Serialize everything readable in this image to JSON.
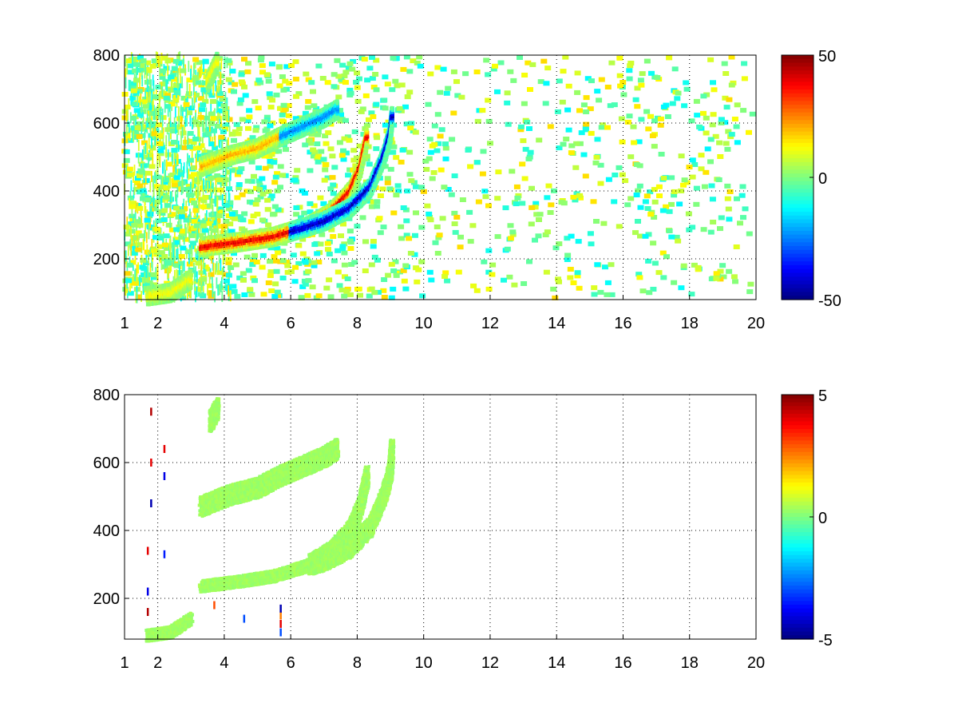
{
  "chart_data": [
    {
      "type": "heatmap",
      "xlim": [
        1,
        20
      ],
      "ylim": [
        80,
        800
      ],
      "x_ticks": [
        "1",
        "2",
        "4",
        "6",
        "8",
        "10",
        "12",
        "14",
        "16",
        "18",
        "20"
      ],
      "y_ticks": [
        "200",
        "400",
        "600",
        "800"
      ],
      "grid": true,
      "colorbar": {
        "min": -50,
        "max": 50,
        "ticks": [
          "50",
          "0",
          "-50"
        ],
        "colormap": "jet"
      },
      "features": [
        {
          "kind": "ridge",
          "sign": 1,
          "amplitude": 40,
          "points": [
            [
              3.3,
              235
            ],
            [
              4.5,
              250
            ],
            [
              5.5,
              265
            ],
            [
              6.5,
              295
            ],
            [
              7.2,
              335
            ],
            [
              7.8,
              400
            ],
            [
              8.1,
              470
            ],
            [
              8.3,
              560
            ]
          ]
        },
        {
          "kind": "ridge",
          "sign": -1,
          "amplitude": 45,
          "points": [
            [
              6.0,
              280
            ],
            [
              7.0,
              310
            ],
            [
              7.8,
              350
            ],
            [
              8.4,
              410
            ],
            [
              8.8,
              500
            ],
            [
              9.0,
              570
            ],
            [
              9.05,
              620
            ]
          ]
        },
        {
          "kind": "ridge",
          "sign": 1,
          "amplitude": 20,
          "points": [
            [
              3.3,
              470
            ],
            [
              4.2,
              505
            ],
            [
              5.0,
              525
            ],
            [
              5.7,
              560
            ]
          ]
        },
        {
          "kind": "ridge",
          "sign": -1,
          "amplitude": 25,
          "points": [
            [
              5.7,
              560
            ],
            [
              6.4,
              590
            ],
            [
              7.0,
              615
            ],
            [
              7.4,
              640
            ]
          ]
        },
        {
          "kind": "ridge",
          "sign": 1,
          "amplitude": 12,
          "points": [
            [
              1.7,
              90
            ],
            [
              2.4,
              100
            ],
            [
              3.0,
              140
            ]
          ]
        },
        {
          "kind": "ridge",
          "sign": 1,
          "amplitude": 12,
          "points": [
            [
              3.5,
              720
            ],
            [
              3.8,
              780
            ]
          ]
        }
      ]
    },
    {
      "type": "heatmap",
      "xlim": [
        1,
        20
      ],
      "ylim": [
        80,
        800
      ],
      "x_ticks": [
        "1",
        "2",
        "4",
        "6",
        "8",
        "10",
        "12",
        "14",
        "16",
        "18",
        "20"
      ],
      "y_ticks": [
        "200",
        "400",
        "600",
        "800"
      ],
      "grid": true,
      "colorbar": {
        "min": -5,
        "max": 5,
        "ticks": [
          "5",
          "0",
          "-5"
        ],
        "colormap": "jet"
      },
      "features": [
        {
          "kind": "band",
          "value": 0.3,
          "points": [
            [
              3.3,
              235
            ],
            [
              4.5,
              250
            ],
            [
              5.5,
              265
            ],
            [
              6.5,
              295
            ],
            [
              7.2,
              335
            ],
            [
              7.8,
              400
            ],
            [
              8.1,
              470
            ],
            [
              8.3,
              560
            ]
          ]
        },
        {
          "kind": "band",
          "value": 0.3,
          "points": [
            [
              6.0,
              280
            ],
            [
              7.0,
              310
            ],
            [
              7.8,
              350
            ],
            [
              8.4,
              410
            ],
            [
              8.8,
              500
            ],
            [
              9.0,
              570
            ],
            [
              9.05,
              640
            ]
          ]
        },
        {
          "kind": "band",
          "value": 0.3,
          "points": [
            [
              3.3,
              470
            ],
            [
              4.2,
              505
            ],
            [
              5.0,
              525
            ],
            [
              5.7,
              560
            ],
            [
              6.4,
              590
            ],
            [
              7.0,
              615
            ],
            [
              7.4,
              640
            ]
          ]
        },
        {
          "kind": "band",
          "value": 0.3,
          "points": [
            [
              1.7,
              90
            ],
            [
              2.4,
              100
            ],
            [
              3.0,
              140
            ]
          ]
        },
        {
          "kind": "band",
          "value": 0.3,
          "points": [
            [
              3.6,
              720
            ],
            [
              3.8,
              760
            ]
          ]
        }
      ],
      "outliers": [
        {
          "x": 5.7,
          "y": 100,
          "value": -3
        },
        {
          "x": 5.7,
          "y": 125,
          "value": 4
        },
        {
          "x": 5.7,
          "y": 150,
          "value": 2.5
        },
        {
          "x": 5.7,
          "y": 170,
          "value": -4.5
        },
        {
          "x": 1.7,
          "y": 160,
          "value": 4.5
        },
        {
          "x": 1.7,
          "y": 220,
          "value": -4
        },
        {
          "x": 1.7,
          "y": 340,
          "value": 4
        },
        {
          "x": 1.8,
          "y": 480,
          "value": -4.5
        },
        {
          "x": 1.8,
          "y": 600,
          "value": 4
        },
        {
          "x": 1.8,
          "y": 750,
          "value": 4.5
        },
        {
          "x": 2.2,
          "y": 560,
          "value": -4
        },
        {
          "x": 2.2,
          "y": 640,
          "value": 4
        },
        {
          "x": 3.7,
          "y": 180,
          "value": 3
        },
        {
          "x": 4.6,
          "y": 140,
          "value": -3
        },
        {
          "x": 2.2,
          "y": 330,
          "value": -3.5
        }
      ]
    }
  ]
}
